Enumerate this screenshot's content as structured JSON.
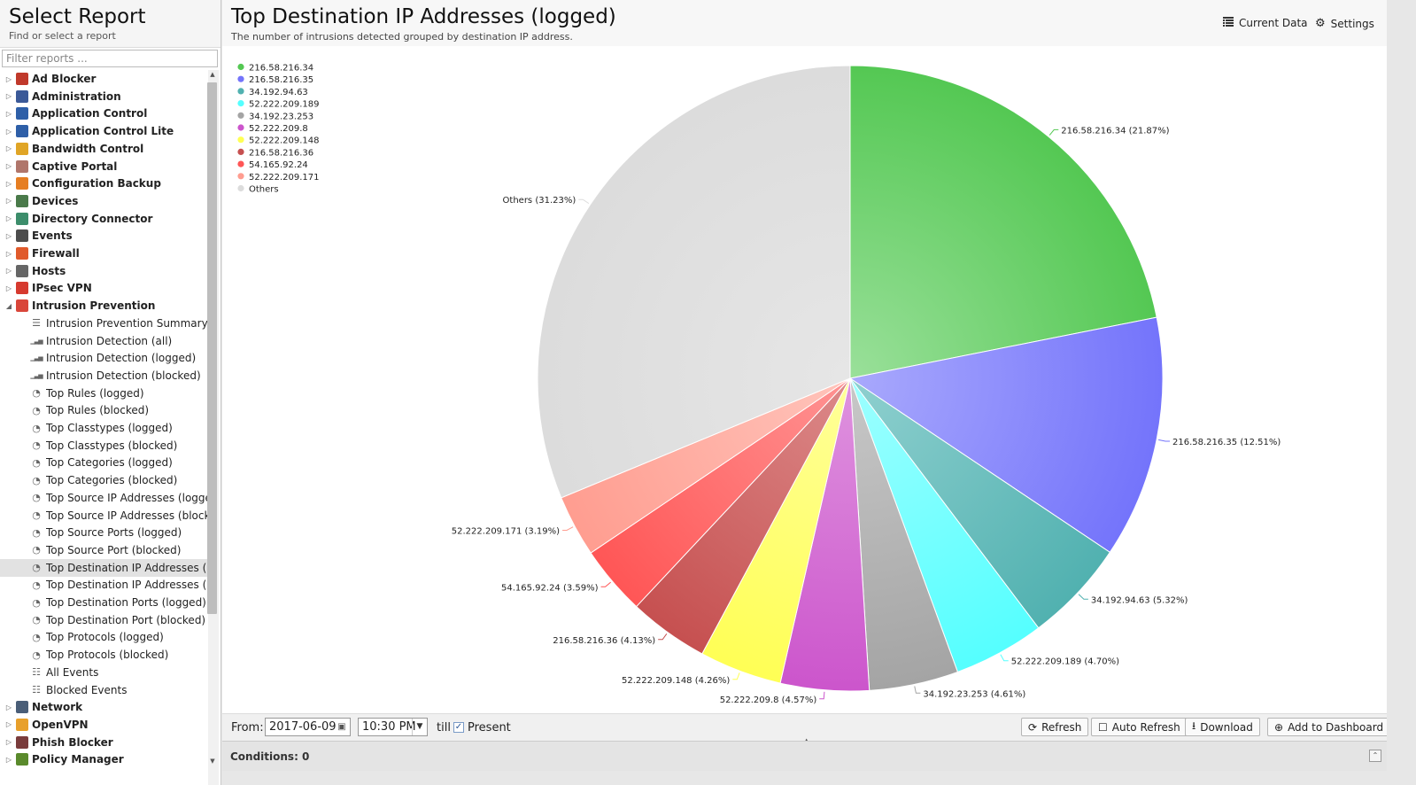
{
  "sidebar": {
    "title": "Select Report",
    "subtitle": "Find or select a report",
    "filter_placeholder": "Filter reports ...",
    "categories": [
      {
        "label": "Ad Blocker",
        "icon": "ad-blocker-icon",
        "color": "#c0392b",
        "expanded": false
      },
      {
        "label": "Administration",
        "icon": "administration-icon",
        "color": "#3b5998",
        "expanded": false
      },
      {
        "label": "Application Control",
        "icon": "application-control-icon",
        "color": "#2e5fa8",
        "expanded": false
      },
      {
        "label": "Application Control Lite",
        "icon": "application-control-lite-icon",
        "color": "#2e5fa8",
        "expanded": false
      },
      {
        "label": "Bandwidth Control",
        "icon": "bandwidth-control-icon",
        "color": "#e0a526",
        "expanded": false
      },
      {
        "label": "Captive Portal",
        "icon": "captive-portal-icon",
        "color": "#b0766b",
        "expanded": false
      },
      {
        "label": "Configuration Backup",
        "icon": "configuration-backup-icon",
        "color": "#e67e22",
        "expanded": false
      },
      {
        "label": "Devices",
        "icon": "devices-icon",
        "color": "#4a7a4a",
        "expanded": false
      },
      {
        "label": "Directory Connector",
        "icon": "directory-connector-icon",
        "color": "#3c8d6b",
        "expanded": false
      },
      {
        "label": "Events",
        "icon": "events-icon",
        "color": "#4d4d4d",
        "expanded": false
      },
      {
        "label": "Firewall",
        "icon": "firewall-icon",
        "color": "#e05a2b",
        "expanded": false
      },
      {
        "label": "Hosts",
        "icon": "hosts-icon",
        "color": "#666666",
        "expanded": false
      },
      {
        "label": "IPsec VPN",
        "icon": "ipsec-vpn-icon",
        "color": "#d63a2f",
        "expanded": false
      },
      {
        "label": "Intrusion Prevention",
        "icon": "intrusion-prevention-icon",
        "color": "#d9463a",
        "expanded": true
      },
      {
        "label": "Network",
        "icon": "network-icon",
        "color": "#4a5e78",
        "expanded": false
      },
      {
        "label": "OpenVPN",
        "icon": "openvpn-icon",
        "color": "#e8a02b",
        "expanded": false
      },
      {
        "label": "Phish Blocker",
        "icon": "phish-blocker-icon",
        "color": "#7a3c3c",
        "expanded": false
      },
      {
        "label": "Policy Manager",
        "icon": "policy-manager-icon",
        "color": "#5a8a2c",
        "expanded": false
      }
    ],
    "reports": [
      {
        "label": "Intrusion Prevention Summary",
        "icon": "text-lines-icon",
        "glyph": "☰",
        "selected": false
      },
      {
        "label": "Intrusion Detection (all)",
        "icon": "bar-chart-icon",
        "glyph": "▁▃▅",
        "selected": false
      },
      {
        "label": "Intrusion Detection (logged)",
        "icon": "bar-chart-icon",
        "glyph": "▁▃▅",
        "selected": false
      },
      {
        "label": "Intrusion Detection (blocked)",
        "icon": "bar-chart-icon",
        "glyph": "▁▃▅",
        "selected": false
      },
      {
        "label": "Top Rules (logged)",
        "icon": "pie-chart-icon",
        "glyph": "◔",
        "selected": false
      },
      {
        "label": "Top Rules (blocked)",
        "icon": "pie-chart-icon",
        "glyph": "◔",
        "selected": false
      },
      {
        "label": "Top Classtypes (logged)",
        "icon": "pie-chart-icon",
        "glyph": "◔",
        "selected": false
      },
      {
        "label": "Top Classtypes (blocked)",
        "icon": "pie-chart-icon",
        "glyph": "◔",
        "selected": false
      },
      {
        "label": "Top Categories (logged)",
        "icon": "pie-chart-icon",
        "glyph": "◔",
        "selected": false
      },
      {
        "label": "Top Categories (blocked)",
        "icon": "pie-chart-icon",
        "glyph": "◔",
        "selected": false
      },
      {
        "label": "Top Source IP Addresses (logged)",
        "icon": "pie-chart-icon",
        "glyph": "◔",
        "selected": false
      },
      {
        "label": "Top Source IP Addresses (blocked)",
        "icon": "pie-chart-icon",
        "glyph": "◔",
        "selected": false
      },
      {
        "label": "Top Source Ports (logged)",
        "icon": "pie-chart-icon",
        "glyph": "◔",
        "selected": false
      },
      {
        "label": "Top Source Port (blocked)",
        "icon": "pie-chart-icon",
        "glyph": "◔",
        "selected": false
      },
      {
        "label": "Top Destination IP Addresses (lo...",
        "icon": "pie-chart-icon",
        "glyph": "◔",
        "selected": true
      },
      {
        "label": "Top Destination IP Addresses (blo...",
        "icon": "pie-chart-icon",
        "glyph": "◔",
        "selected": false
      },
      {
        "label": "Top Destination Ports (logged)",
        "icon": "pie-chart-icon",
        "glyph": "◔",
        "selected": false
      },
      {
        "label": "Top Destination Port (blocked)",
        "icon": "pie-chart-icon",
        "glyph": "◔",
        "selected": false
      },
      {
        "label": "Top Protocols (logged)",
        "icon": "pie-chart-icon",
        "glyph": "◔",
        "selected": false
      },
      {
        "label": "Top Protocols (blocked)",
        "icon": "pie-chart-icon",
        "glyph": "◔",
        "selected": false
      },
      {
        "label": "All Events",
        "icon": "list-icon",
        "glyph": "☷",
        "selected": false
      },
      {
        "label": "Blocked Events",
        "icon": "list-icon",
        "glyph": "☷",
        "selected": false
      }
    ]
  },
  "header": {
    "title": "Top Destination IP Addresses (logged)",
    "subtitle": "The number of intrusions detected grouped by destination IP address.",
    "current_data_label": "Current Data",
    "settings_label": "Settings"
  },
  "bottom": {
    "from_label": "From:",
    "date_value": "2017-06-09",
    "time_value": "10:30 PM",
    "till_label": "till",
    "present_label": "Present",
    "present_checked": true,
    "refresh_label": "Refresh",
    "auto_refresh_label": "Auto Refresh",
    "download_label": "Download",
    "add_dashboard_label": "Add to Dashboard",
    "conditions_label": "Conditions: 0"
  },
  "chart_data": {
    "type": "pie",
    "start_angle_deg": 0,
    "direction": "clockwise",
    "legend_position": "top-left",
    "slices": [
      {
        "label": "216.58.216.34",
        "value": 21.87,
        "color": "#54c853",
        "light": "#9ae09a"
      },
      {
        "label": "216.58.216.35",
        "value": 12.51,
        "color": "#7474fb",
        "light": "#a9a9fc"
      },
      {
        "label": "34.192.94.63",
        "value": 5.32,
        "color": "#51b1b0",
        "light": "#8fd0cf"
      },
      {
        "label": "52.222.209.189",
        "value": 4.7,
        "color": "#55ffff",
        "light": "#9effff"
      },
      {
        "label": "34.192.23.253",
        "value": 4.61,
        "color": "#a4a4a4",
        "light": "#c8c8c8"
      },
      {
        "label": "52.222.209.8",
        "value": 4.57,
        "color": "#cc55cc",
        "light": "#df94df"
      },
      {
        "label": "52.222.209.148",
        "value": 4.26,
        "color": "#ffff55",
        "light": "#ffff9a"
      },
      {
        "label": "216.58.216.36",
        "value": 4.13,
        "color": "#c65050",
        "light": "#dc8a8a"
      },
      {
        "label": "54.165.92.24",
        "value": 3.59,
        "color": "#ff5656",
        "light": "#ff9393"
      },
      {
        "label": "52.222.209.171",
        "value": 3.19,
        "color": "#ff9d90",
        "light": "#ffc4bb"
      },
      {
        "label": "Others",
        "value": 31.23,
        "color": "#dcdcdc",
        "light": "#e6e6e6"
      }
    ]
  }
}
